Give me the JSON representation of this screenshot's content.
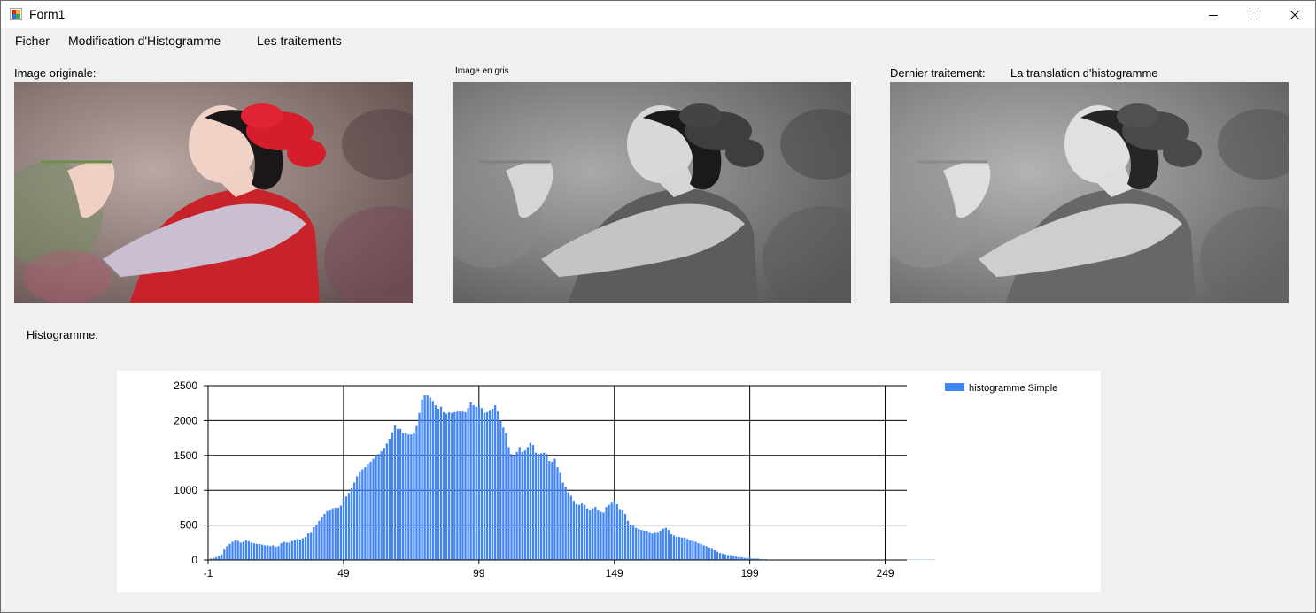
{
  "window": {
    "title": "Form1"
  },
  "menu": [
    "Ficher",
    "Modification d'Histogramme",
    "Les traitements"
  ],
  "labels": {
    "original": "Image originale:",
    "grey": "Image en gris",
    "last_treatment": "Dernier traitement:",
    "last_treatment_value": "La translation d'histogramme",
    "histogram": "Histogramme:"
  },
  "icons": {
    "app": "form-app-icon",
    "minimize": "minimize-icon",
    "maximize": "maximize-icon",
    "close": "close-icon"
  },
  "colors": {
    "series": "#4285f4",
    "form_bg": "#f0f0f0"
  },
  "chart_data": {
    "type": "bar",
    "x_ticks": [
      -1,
      49,
      99,
      149,
      199,
      249
    ],
    "y_ticks": [
      0,
      500,
      1000,
      1500,
      2000,
      2500
    ],
    "xlim": [
      -1,
      257
    ],
    "ylim": [
      0,
      2500
    ],
    "grid": true,
    "legend_position": "top-right",
    "series": [
      {
        "name": "histogramme Simple",
        "x_start": 0,
        "values": [
          20,
          30,
          40,
          60,
          80,
          150,
          200,
          230,
          260,
          280,
          275,
          250,
          260,
          280,
          270,
          250,
          240,
          230,
          230,
          220,
          210,
          210,
          200,
          210,
          190,
          200,
          240,
          260,
          250,
          250,
          270,
          280,
          300,
          290,
          310,
          330,
          380,
          400,
          470,
          510,
          560,
          620,
          660,
          700,
          720,
          740,
          750,
          750,
          780,
          880,
          910,
          960,
          1030,
          1110,
          1200,
          1260,
          1300,
          1330,
          1380,
          1410,
          1450,
          1490,
          1520,
          1560,
          1600,
          1670,
          1740,
          1830,
          1930,
          1880,
          1880,
          1820,
          1820,
          1800,
          1800,
          1830,
          1920,
          2110,
          2300,
          2360,
          2360,
          2330,
          2280,
          2220,
          2170,
          2200,
          2120,
          2100,
          2120,
          2110,
          2120,
          2130,
          2130,
          2130,
          2120,
          2180,
          2260,
          2220,
          2200,
          2210,
          2180,
          2110,
          2120,
          2140,
          2170,
          2220,
          2130,
          2000,
          1900,
          1820,
          1620,
          1520,
          1500,
          1550,
          1620,
          1550,
          1570,
          1620,
          1680,
          1650,
          1540,
          1520,
          1530,
          1540,
          1520,
          1420,
          1410,
          1450,
          1330,
          1250,
          1110,
          1050,
          970,
          920,
          850,
          800,
          790,
          810,
          790,
          740,
          720,
          740,
          760,
          720,
          690,
          680,
          760,
          790,
          820,
          860,
          800,
          730,
          720,
          660,
          560,
          500,
          490,
          460,
          440,
          430,
          420,
          420,
          400,
          380,
          400,
          400,
          420,
          450,
          460,
          430,
          370,
          350,
          330,
          330,
          320,
          320,
          300,
          280,
          270,
          260,
          240,
          230,
          210,
          200,
          180,
          160,
          140,
          120,
          100,
          90,
          80,
          70,
          70,
          60,
          50,
          40,
          40,
          30,
          30,
          30,
          20,
          20,
          20,
          10,
          10,
          10,
          5,
          5,
          5,
          5,
          5,
          5,
          5,
          5,
          5,
          5,
          5,
          5,
          5,
          5,
          5,
          5,
          5,
          5,
          5,
          5,
          5,
          5,
          5,
          5,
          5,
          5,
          5,
          5,
          5,
          5,
          5,
          5,
          5,
          5,
          5,
          5,
          5,
          5,
          5,
          5,
          5,
          5,
          5,
          5,
          5,
          5,
          5,
          5,
          5,
          5,
          5,
          5,
          5,
          5,
          5,
          5,
          5,
          5,
          5,
          5,
          5,
          5
        ]
      }
    ]
  }
}
